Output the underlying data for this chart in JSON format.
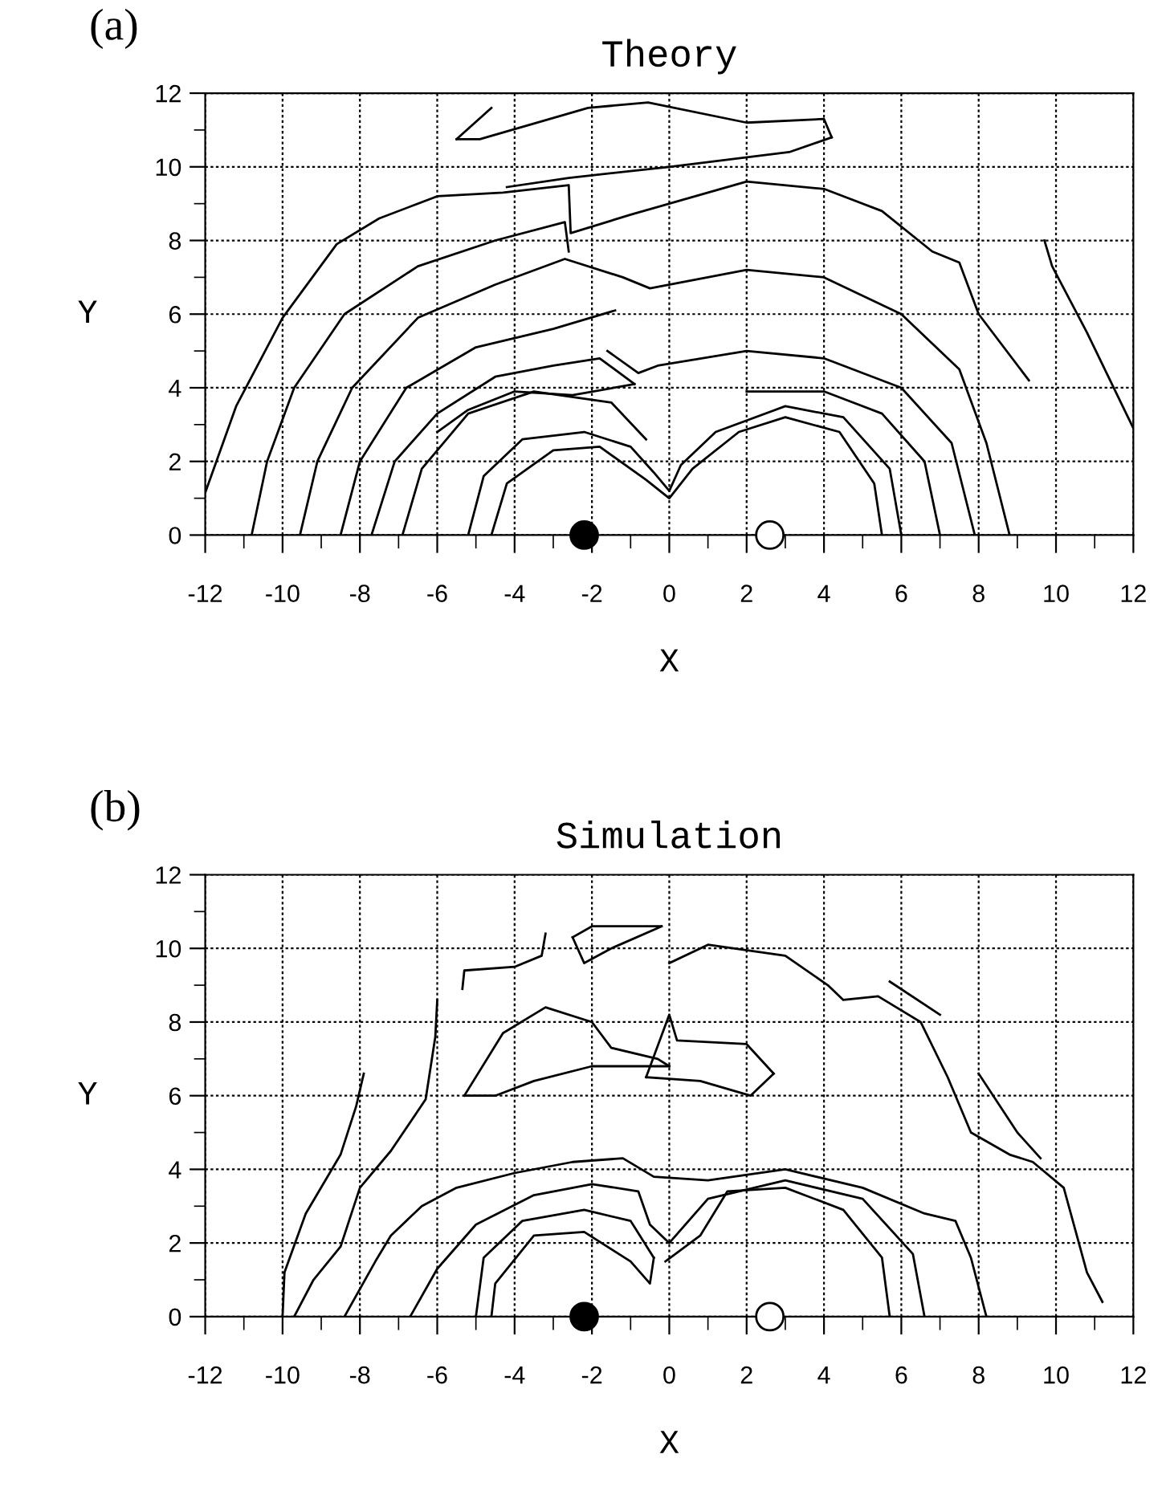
{
  "chart_data": [
    {
      "type": "line",
      "title": "Theory",
      "xlabel": "X",
      "ylabel": "Y",
      "annotations": [
        "(a)"
      ],
      "grid": true,
      "line_style": "solid",
      "xlim": [
        -12,
        12
      ],
      "ylim": [
        0,
        12
      ],
      "xticks": [
        -12,
        {
          "value": -11,
          "label": null
        },
        -10,
        {
          "value": -9,
          "label": null
        },
        -8,
        {
          "value": -7,
          "label": null
        },
        -6,
        {
          "value": -5,
          "label": null
        },
        -4,
        {
          "value": -3,
          "label": null
        },
        -2,
        {
          "value": -1,
          "label": null
        },
        0,
        {
          "value": 1,
          "label": null
        },
        2,
        {
          "value": 3,
          "label": null
        },
        4,
        {
          "value": 5,
          "label": null
        },
        6,
        {
          "value": 7,
          "label": null
        },
        8,
        {
          "value": 9,
          "label": null
        },
        10,
        {
          "value": 11,
          "label": null
        },
        12
      ],
      "yticks": [
        0,
        {
          "value": 1,
          "label": null
        },
        2,
        {
          "value": 3,
          "label": null
        },
        4,
        {
          "value": 5,
          "label": null
        },
        6,
        {
          "value": 7,
          "label": null
        },
        8,
        {
          "value": 9,
          "label": null
        },
        10,
        {
          "value": 11,
          "label": null
        },
        12
      ],
      "series": [
        {
          "color": "#000000",
          "x": [
            -12,
            -11.2,
            -10,
            -8.6,
            -7.5,
            -6,
            -4.3,
            -2.6,
            -2.55,
            -1,
            0,
            2,
            4,
            5.5,
            6.8,
            7.5,
            8,
            9.3
          ],
          "values": [
            1.15,
            3.5,
            5.9,
            7.9,
            8.6,
            9.2,
            9.3,
            9.5,
            8.2,
            8.7,
            9.0,
            9.6,
            9.4,
            8.8,
            7.7,
            7.4,
            6.0,
            4.2
          ]
        },
        {
          "color": "#000000",
          "x": [
            -5.5,
            -4.6
          ],
          "values": [
            10.75,
            11.6
          ]
        },
        {
          "color": "#000000",
          "x": [
            -5.5,
            -4.9,
            -2.1,
            -0.55,
            2,
            4,
            4.2
          ],
          "values": [
            10.75,
            10.75,
            11.6,
            11.75,
            11.2,
            11.3,
            10.8
          ]
        },
        {
          "color": "#000000",
          "x": [
            -4.2,
            -2.6,
            0,
            3.1,
            4.2
          ],
          "values": [
            9.45,
            9.7,
            10.0,
            10.4,
            10.8
          ]
        },
        {
          "color": "#000000",
          "x": [
            -10.8,
            -10.4,
            -9.7,
            -8.4,
            -6.5,
            -4.5,
            -2.7,
            -2.6
          ],
          "values": [
            0,
            2,
            4,
            6,
            7.3,
            8.0,
            8.5,
            7.7
          ]
        },
        {
          "color": "#000000",
          "x": [
            -9.55,
            -9.1,
            -8.2,
            -6.5,
            -4.5,
            -2.7,
            -1.2,
            -0.5,
            2,
            4,
            6,
            7.5,
            8.2,
            8.8
          ],
          "values": [
            0,
            2,
            4,
            5.9,
            6.8,
            7.5,
            7.0,
            6.7,
            7.2,
            7.0,
            6.0,
            4.5,
            2.5,
            0
          ]
        },
        {
          "color": "#000000",
          "x": [
            -8.5,
            -8,
            -6.8,
            -5,
            -3,
            -1.4
          ],
          "values": [
            0,
            2,
            4,
            5.1,
            5.6,
            6.1
          ]
        },
        {
          "color": "#000000",
          "x": [
            -1.6,
            -0.8,
            -0.3,
            2,
            4,
            6,
            7.3,
            7.9
          ],
          "values": [
            5.0,
            4.4,
            4.6,
            5.0,
            4.8,
            4.0,
            2.5,
            0
          ]
        },
        {
          "color": "#000000",
          "x": [
            -7.7,
            -7.1,
            -6,
            -4.5,
            -3,
            -1.8,
            -0.9
          ],
          "values": [
            0,
            2,
            3.3,
            4.3,
            4.6,
            4.8,
            4.1
          ]
        },
        {
          "color": "#000000",
          "x": [
            -6,
            -5.2,
            -4,
            -2.5,
            -0.9
          ],
          "values": [
            2.8,
            3.4,
            3.9,
            3.8,
            4.1
          ]
        },
        {
          "color": "#000000",
          "x": [
            -6.9,
            -6.4,
            -5.2,
            -3.5,
            -1.5,
            -0.6
          ],
          "values": [
            0,
            1.8,
            3.3,
            3.9,
            3.6,
            2.6
          ]
        },
        {
          "color": "#000000",
          "x": [
            2,
            4,
            5.5,
            6.6,
            7.0
          ],
          "values": [
            3.9,
            3.9,
            3.3,
            2,
            0
          ]
        },
        {
          "color": "#000000",
          "x": [
            -5.2,
            -4.8,
            -3.8,
            -2.2,
            -1,
            -0.4,
            0,
            0.3,
            1.2,
            3,
            4.5,
            5.7,
            6.0
          ],
          "values": [
            0,
            1.6,
            2.6,
            2.8,
            2.4,
            1.7,
            1.2,
            1.9,
            2.8,
            3.5,
            3.2,
            1.8,
            0
          ]
        },
        {
          "color": "#000000",
          "x": [
            -4.6,
            -4.2,
            -3,
            -1.8,
            -0.6,
            0,
            0.6,
            1.8,
            3,
            4.4,
            5.3,
            5.5
          ],
          "values": [
            0,
            1.4,
            2.3,
            2.4,
            1.5,
            1.0,
            1.8,
            2.8,
            3.2,
            2.8,
            1.4,
            0
          ]
        },
        {
          "color": "#000000",
          "x": [
            9.7,
            9.9,
            10.8,
            12
          ],
          "values": [
            8.0,
            7.3,
            5.5,
            2.9
          ]
        },
        {
          "type": "scatter",
          "marker": "circle",
          "color": "#000000",
          "x": [
            -2.2
          ],
          "values": [
            0
          ]
        },
        {
          "type": "scatter",
          "marker": "circle",
          "color": "#ffffff",
          "x": [
            2.6
          ],
          "values": [
            0
          ]
        }
      ]
    },
    {
      "type": "line",
      "title": "Simulation",
      "xlabel": "X",
      "ylabel": "Y",
      "annotations": [
        "(b)"
      ],
      "grid": true,
      "line_style": "solid",
      "xlim": [
        -12,
        12
      ],
      "ylim": [
        0,
        12
      ],
      "xticks": [
        -12,
        {
          "value": -11,
          "label": null
        },
        -10,
        {
          "value": -9,
          "label": null
        },
        -8,
        {
          "value": -7,
          "label": null
        },
        -6,
        {
          "value": -5,
          "label": null
        },
        -4,
        {
          "value": -3,
          "label": null
        },
        -2,
        {
          "value": -1,
          "label": null
        },
        0,
        {
          "value": 1,
          "label": null
        },
        2,
        {
          "value": 3,
          "label": null
        },
        4,
        {
          "value": 5,
          "label": null
        },
        6,
        {
          "value": 7,
          "label": null
        },
        8,
        {
          "value": 9,
          "label": null
        },
        10,
        {
          "value": 11,
          "label": null
        },
        12
      ],
      "yticks": [
        0,
        {
          "value": 1,
          "label": null
        },
        2,
        {
          "value": 3,
          "label": null
        },
        4,
        {
          "value": 5,
          "label": null
        },
        6,
        {
          "value": 7,
          "label": null
        },
        8,
        {
          "value": 9,
          "label": null
        },
        10,
        {
          "value": 11,
          "label": null
        },
        12
      ],
      "series": [
        {
          "color": "#000000",
          "x": [
            -10,
            -9.95,
            -9.4,
            -8.5,
            -8.1,
            -7.9
          ],
          "values": [
            0,
            1.2,
            2.8,
            4.4,
            5.7,
            6.6
          ]
        },
        {
          "color": "#000000",
          "x": [
            -9.7,
            -9.2,
            -8.5,
            -8.0,
            -7.2,
            -6.3,
            -6.05,
            -6.0
          ],
          "values": [
            0,
            1.0,
            1.9,
            3.5,
            4.5,
            5.9,
            7.6,
            8.6
          ]
        },
        {
          "color": "#000000",
          "x": [
            -8.4,
            -7.6,
            -7.2,
            -6.4,
            -5.5,
            -4.0,
            -2.5,
            -1.2,
            -0.4,
            1,
            3,
            5,
            6.6,
            7.4,
            7.8,
            8.2
          ],
          "values": [
            0,
            1.5,
            2.2,
            3.0,
            3.5,
            3.9,
            4.2,
            4.3,
            3.8,
            3.7,
            4.0,
            3.5,
            2.8,
            2.6,
            1.6,
            0
          ]
        },
        {
          "color": "#000000",
          "x": [
            -6.7,
            -6.0,
            -5.0,
            -3.5,
            -2,
            -0.8,
            -0.5,
            0,
            1,
            3,
            5,
            6.3,
            6.6
          ],
          "values": [
            0,
            1.3,
            2.5,
            3.3,
            3.6,
            3.4,
            2.5,
            2.0,
            3.2,
            3.7,
            3.2,
            1.7,
            0
          ]
        },
        {
          "color": "#000000",
          "x": [
            -5.3,
            -4.3,
            -3.2,
            -2.0,
            -1.5,
            -0.3,
            0
          ],
          "values": [
            6.0,
            7.7,
            8.4,
            8.0,
            7.3,
            7.0,
            6.8
          ]
        },
        {
          "color": "#000000",
          "x": [
            -5.3,
            -4.5,
            -3.5,
            -2,
            0
          ],
          "values": [
            6.0,
            6.0,
            6.4,
            6.8,
            6.8
          ]
        },
        {
          "color": "#000000",
          "x": [
            -5.35,
            -5.3,
            -4,
            -3.3,
            -3.2
          ],
          "values": [
            8.9,
            9.4,
            9.5,
            9.8,
            10.4
          ]
        },
        {
          "color": "#000000",
          "x": [
            -2.5,
            -2,
            -0.2
          ],
          "values": [
            10.3,
            10.6,
            10.6
          ]
        },
        {
          "color": "#000000",
          "x": [
            -2.5,
            -2.2,
            -1.5,
            -0.2
          ],
          "values": [
            10.3,
            9.6,
            10.0,
            10.6
          ]
        },
        {
          "color": "#000000",
          "x": [
            0,
            1,
            3,
            4.1,
            4.5,
            5.4,
            6.5,
            7.2,
            7.8,
            8.8,
            9.4,
            10.2,
            10.8,
            11.2
          ],
          "values": [
            9.6,
            10.1,
            9.8,
            9.0,
            8.6,
            8.7,
            8.0,
            6.5,
            5.0,
            4.4,
            4.2,
            3.5,
            1.2,
            0.4
          ]
        },
        {
          "color": "#000000",
          "x": [
            -0.6,
            0,
            0.2,
            2,
            2.7
          ],
          "values": [
            6.5,
            8.2,
            7.5,
            7.4,
            6.6
          ]
        },
        {
          "color": "#000000",
          "x": [
            -0.6,
            0.8,
            2.1,
            2.7
          ],
          "values": [
            6.5,
            6.4,
            6.0,
            6.6
          ]
        },
        {
          "color": "#000000",
          "x": [
            5.7,
            7.0
          ],
          "values": [
            9.1,
            8.2
          ]
        },
        {
          "color": "#000000",
          "x": [
            8.0,
            9.0,
            9.6
          ],
          "values": [
            6.6,
            5.0,
            4.3
          ]
        },
        {
          "color": "#000000",
          "x": [
            -5.0,
            -4.8,
            -3.8,
            -2.2,
            -1.0,
            -0.4
          ],
          "values": [
            0,
            1.6,
            2.6,
            2.9,
            2.6,
            1.6
          ]
        },
        {
          "color": "#000000",
          "x": [
            -4.6,
            -4.5,
            -3.5,
            -2.2,
            -1.0,
            -0.5,
            -0.4
          ],
          "values": [
            0,
            0.9,
            2.2,
            2.3,
            1.5,
            0.9,
            1.6
          ]
        },
        {
          "color": "#000000",
          "x": [
            -0.1,
            0.8,
            1.5,
            3,
            4.5,
            5.5,
            5.7
          ],
          "values": [
            1.5,
            2.2,
            3.4,
            3.5,
            2.9,
            1.6,
            0
          ]
        },
        {
          "type": "scatter",
          "marker": "circle",
          "color": "#000000",
          "x": [
            -2.2
          ],
          "values": [
            0
          ]
        },
        {
          "type": "scatter",
          "marker": "circle",
          "color": "#ffffff",
          "x": [
            2.6
          ],
          "values": [
            0
          ]
        }
      ]
    }
  ]
}
